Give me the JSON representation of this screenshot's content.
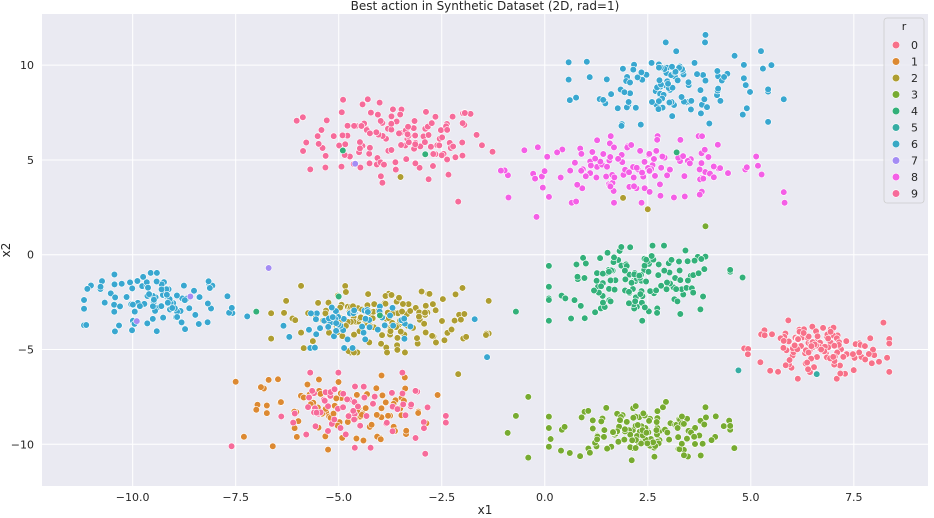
{
  "chart_data": {
    "type": "scatter",
    "title": "Best action in Synthetic Dataset (2D, rad=1)",
    "xlabel": "x1",
    "ylabel": "x2",
    "xlim": [
      -12.2,
      9.3
    ],
    "ylim": [
      -12.2,
      12.7
    ],
    "xticks": [
      -10.0,
      -7.5,
      -5.0,
      -2.5,
      0.0,
      2.5,
      5.0,
      7.5
    ],
    "xtick_labels": [
      "−10.0",
      "−7.5",
      "−5.0",
      "−2.5",
      "0.0",
      "2.5",
      "5.0",
      "7.5"
    ],
    "yticks": [
      10,
      5,
      0,
      -5,
      -10
    ],
    "ytick_labels": [
      "10",
      "5",
      "0",
      "−5",
      "−10"
    ],
    "grid": true,
    "background": "#eaeaf2",
    "legend": {
      "title": "r",
      "placement": "top-right",
      "entries": [
        {
          "label": "0",
          "color": "#f77189"
        },
        {
          "label": "1",
          "color": "#dc8932"
        },
        {
          "label": "2",
          "color": "#ae9d31"
        },
        {
          "label": "3",
          "color": "#77ab31"
        },
        {
          "label": "4",
          "color": "#33b07a"
        },
        {
          "label": "5",
          "color": "#36ada4"
        },
        {
          "label": "6",
          "color": "#38a9c5"
        },
        {
          "label": "7",
          "color": "#a48cf4"
        },
        {
          "label": "8",
          "color": "#f45fe6"
        },
        {
          "label": "9",
          "color": "#f66b9a"
        }
      ]
    },
    "series": [
      {
        "name": "9",
        "color": "#f66b9a",
        "cluster": {
          "cx": -3.6,
          "cy": 6.0,
          "sx": 1.1,
          "sy": 1.0,
          "n": 130
        }
      },
      {
        "name": "6",
        "color": "#39a7d0",
        "cluster": {
          "cx": 3.0,
          "cy": 9.0,
          "sx": 1.1,
          "sy": 1.0,
          "n": 120
        }
      },
      {
        "name": "8",
        "color": "#f45fe6",
        "cluster": {
          "cx": 2.3,
          "cy": 4.5,
          "sx": 1.6,
          "sy": 0.8,
          "n": 130
        }
      },
      {
        "name": "4",
        "color": "#33b07a",
        "cluster": {
          "cx": 2.3,
          "cy": -1.5,
          "sx": 1.0,
          "sy": 0.9,
          "n": 140
        }
      },
      {
        "name": "0",
        "color": "#f77189",
        "cluster": {
          "cx": 6.6,
          "cy": -5.0,
          "sx": 0.8,
          "sy": 0.7,
          "n": 130
        }
      },
      {
        "name": "3",
        "color": "#77ab31",
        "cluster": {
          "cx": 2.3,
          "cy": -9.3,
          "sx": 1.0,
          "sy": 0.7,
          "n": 140
        }
      },
      {
        "name": "1",
        "color": "#dc8932",
        "cluster": {
          "cx": -4.8,
          "cy": -8.3,
          "sx": 1.0,
          "sy": 0.9,
          "n": 90
        }
      },
      {
        "name": "2",
        "color": "#ae9d31",
        "cluster": {
          "cx": -4.0,
          "cy": -3.4,
          "sx": 1.2,
          "sy": 0.8,
          "n": 150
        }
      },
      {
        "name": "6",
        "color": "#39a7d0",
        "cluster": {
          "cx": -9.2,
          "cy": -2.5,
          "sx": 0.9,
          "sy": 0.7,
          "n": 100
        }
      },
      {
        "name": "6",
        "color": "#39a7d0",
        "cluster": {
          "cx": -4.8,
          "cy": -3.6,
          "sx": 0.7,
          "sy": 0.6,
          "n": 60
        }
      },
      {
        "name": "9",
        "color": "#f66b9a",
        "cluster": {
          "cx": -4.6,
          "cy": -8.2,
          "sx": 1.0,
          "sy": 0.9,
          "n": 70
        }
      }
    ],
    "extra_points": [
      {
        "x": -6.7,
        "y": -0.7,
        "color": "#a48cf4"
      },
      {
        "x": -9.9,
        "y": -3.5,
        "color": "#a48cf4"
      },
      {
        "x": -8.6,
        "y": -2.2,
        "color": "#a48cf4"
      },
      {
        "x": -4.6,
        "y": 4.8,
        "color": "#a48cf4"
      },
      {
        "x": -4.9,
        "y": 5.5,
        "color": "#33b07a"
      },
      {
        "x": -2.9,
        "y": 5.3,
        "color": "#33b07a"
      },
      {
        "x": 3.2,
        "y": 5.4,
        "color": "#33b07a"
      },
      {
        "x": 4.2,
        "y": 5.8,
        "color": "#f45fe6"
      },
      {
        "x": -5.0,
        "y": -2.2,
        "color": "#33b07a"
      },
      {
        "x": -4.0,
        "y": -3.2,
        "color": "#33b07a"
      },
      {
        "x": -7.0,
        "y": -3.0,
        "color": "#33b07a"
      },
      {
        "x": -0.7,
        "y": -8.5,
        "color": "#77ab31"
      },
      {
        "x": -0.4,
        "y": -7.5,
        "color": "#77ab31"
      },
      {
        "x": -0.4,
        "y": -10.7,
        "color": "#77ab31"
      },
      {
        "x": -0.9,
        "y": -9.4,
        "color": "#77ab31"
      },
      {
        "x": 4.6,
        "y": -10.2,
        "color": "#77ab31"
      },
      {
        "x": 3.9,
        "y": 1.5,
        "color": "#77ab31"
      },
      {
        "x": 0.5,
        "y": -2.3,
        "color": "#33b07a"
      },
      {
        "x": -0.7,
        "y": -3.0,
        "color": "#33b07a"
      },
      {
        "x": 4.7,
        "y": -6.1,
        "color": "#36ada4"
      },
      {
        "x": 6.6,
        "y": -6.3,
        "color": "#36ada4"
      },
      {
        "x": 4.5,
        "y": -0.8,
        "color": "#33b07a"
      },
      {
        "x": 4.8,
        "y": -1.2,
        "color": "#33b07a"
      },
      {
        "x": 2.5,
        "y": 2.4,
        "color": "#ae9d31"
      },
      {
        "x": 1.9,
        "y": 3.0,
        "color": "#ae9d31"
      },
      {
        "x": -3.5,
        "y": 4.1,
        "color": "#ae9d31"
      },
      {
        "x": -2.1,
        "y": -6.3,
        "color": "#ae9d31"
      },
      {
        "x": -3.1,
        "y": -4.4,
        "color": "#ae9d31"
      },
      {
        "x": 0.3,
        "y": 5.4,
        "color": "#f45fe6"
      },
      {
        "x": -0.2,
        "y": 2.0,
        "color": "#f45fe6"
      },
      {
        "x": 5.8,
        "y": 3.3,
        "color": "#f45fe6"
      },
      {
        "x": -2.1,
        "y": 2.8,
        "color": "#f66b9a"
      },
      {
        "x": -7.6,
        "y": -10.1,
        "color": "#f66b9a"
      },
      {
        "x": -2.9,
        "y": -10.5,
        "color": "#f66b9a"
      },
      {
        "x": -6.7,
        "y": -6.6,
        "color": "#dc8932"
      },
      {
        "x": -7.5,
        "y": -6.7,
        "color": "#dc8932"
      },
      {
        "x": -7.3,
        "y": -9.6,
        "color": "#dc8932"
      },
      {
        "x": -6.6,
        "y": -10.1,
        "color": "#dc8932"
      },
      {
        "x": -4.4,
        "y": -9.8,
        "color": "#dc8932"
      },
      {
        "x": -11.1,
        "y": -1.8,
        "color": "#39a7d0"
      },
      {
        "x": -1.4,
        "y": -5.4,
        "color": "#39a7d0"
      },
      {
        "x": -1.7,
        "y": -3.4,
        "color": "#39a7d0"
      },
      {
        "x": 5.8,
        "y": 8.2,
        "color": "#39a7d0"
      },
      {
        "x": 5.5,
        "y": 10.0,
        "color": "#39a7d0"
      },
      {
        "x": 3.9,
        "y": 11.6,
        "color": "#39a7d0"
      }
    ]
  }
}
